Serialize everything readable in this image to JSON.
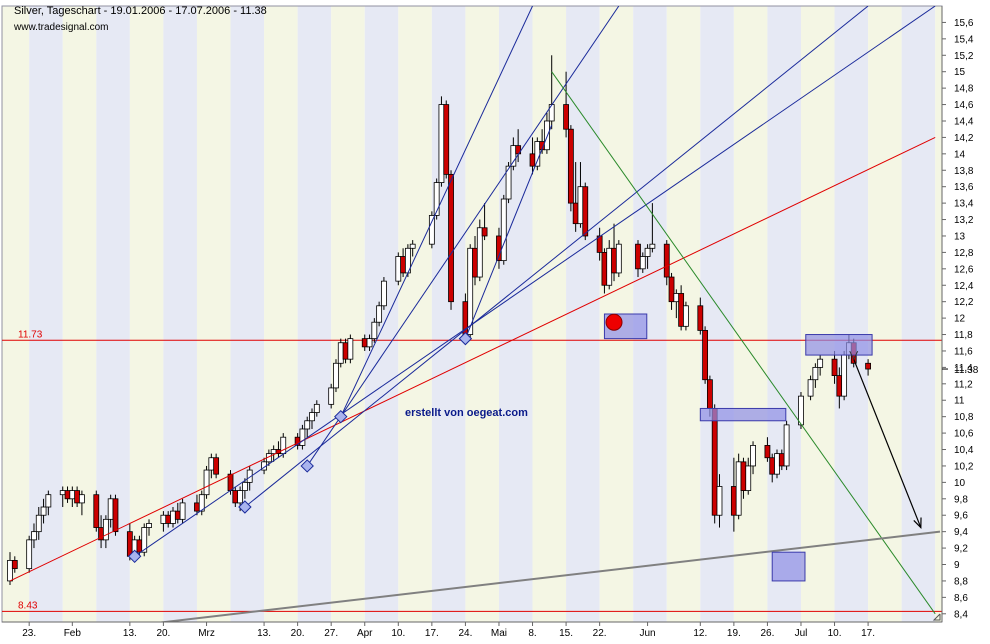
{
  "header": {
    "title": "Silver, Tageschart - 19.01.2006 - 17.07.2006 - 11.38",
    "source": "www.tradesignal.com",
    "watermark": "erstellt von oegeat.com"
  },
  "colors": {
    "background": "#ffffff",
    "band": "#f4f6e4",
    "band_alt": "#e6e9f4",
    "up_candle": "#ffffff",
    "down_candle": "#cc0000",
    "red_line": "#e00000",
    "blue_line": "#1a2a9a",
    "green_line": "#2a8a2a",
    "gray_line": "#808080",
    "box_fill": "#8f8fe6",
    "box_stroke": "#3a3aaa"
  },
  "chart_data": {
    "type": "candlestick",
    "title": "Silver, Tageschart - 19.01.2006 - 17.07.2006 - 11.38",
    "ylim": [
      8.3,
      15.8
    ],
    "y_ticks": [
      "15,6",
      "15,4",
      "15,2",
      "15",
      "14,8",
      "14,6",
      "14,4",
      "14,2",
      "14",
      "13,8",
      "13,6",
      "13,4",
      "13,2",
      "13",
      "12,8",
      "12,6",
      "12,4",
      "12,2",
      "12",
      "11,8",
      "11,6",
      "11,4",
      "11,2",
      "11",
      "10,8",
      "10,6",
      "10,4",
      "10,2",
      "10",
      "9,8",
      "9,6",
      "9,4",
      "9,2",
      "9",
      "8,8",
      "8,6",
      "8,4"
    ],
    "x_ticks": [
      "23.",
      "Feb",
      "13.",
      "20.",
      "Mrz",
      "13.",
      "20.",
      "27.",
      "Apr",
      "10.",
      "17.",
      "24.",
      "Mai",
      "8.",
      "15.",
      "22.",
      "Jun",
      "12.",
      "19.",
      "26.",
      "Jul",
      "10.",
      "17."
    ],
    "last_price": 11.38,
    "last_price_label": "11.38",
    "horizontal_lines": [
      {
        "value": 11.73,
        "label": "11.73"
      },
      {
        "value": 8.43,
        "label": "8.43"
      }
    ],
    "candles": [
      {
        "date": "2006-01-19",
        "o": 8.8,
        "h": 9.15,
        "l": 8.75,
        "c": 9.05
      },
      {
        "date": "2006-01-20",
        "o": 9.05,
        "h": 9.1,
        "l": 8.9,
        "c": 8.95
      },
      {
        "date": "2006-01-23",
        "o": 8.95,
        "h": 9.35,
        "l": 8.9,
        "c": 9.3
      },
      {
        "date": "2006-01-24",
        "o": 9.3,
        "h": 9.5,
        "l": 9.2,
        "c": 9.4
      },
      {
        "date": "2006-01-25",
        "o": 9.4,
        "h": 9.7,
        "l": 9.3,
        "c": 9.6
      },
      {
        "date": "2006-01-26",
        "o": 9.6,
        "h": 9.8,
        "l": 9.5,
        "c": 9.7
      },
      {
        "date": "2006-01-27",
        "o": 9.7,
        "h": 9.9,
        "l": 9.6,
        "c": 9.85
      },
      {
        "date": "2006-01-30",
        "o": 9.85,
        "h": 9.95,
        "l": 9.7,
        "c": 9.9
      },
      {
        "date": "2006-01-31",
        "o": 9.9,
        "h": 9.95,
        "l": 9.75,
        "c": 9.8
      },
      {
        "date": "2006-02-01",
        "o": 9.8,
        "h": 9.95,
        "l": 9.7,
        "c": 9.9
      },
      {
        "date": "2006-02-02",
        "o": 9.9,
        "h": 9.95,
        "l": 9.7,
        "c": 9.75
      },
      {
        "date": "2006-02-03",
        "o": 9.75,
        "h": 9.9,
        "l": 9.6,
        "c": 9.85
      },
      {
        "date": "2006-02-06",
        "o": 9.85,
        "h": 9.9,
        "l": 9.4,
        "c": 9.45
      },
      {
        "date": "2006-02-07",
        "o": 9.45,
        "h": 9.6,
        "l": 9.2,
        "c": 9.3
      },
      {
        "date": "2006-02-08",
        "o": 9.3,
        "h": 9.6,
        "l": 9.2,
        "c": 9.55
      },
      {
        "date": "2006-02-09",
        "o": 9.55,
        "h": 9.85,
        "l": 9.45,
        "c": 9.8
      },
      {
        "date": "2006-02-10",
        "o": 9.8,
        "h": 9.85,
        "l": 9.35,
        "c": 9.4
      },
      {
        "date": "2006-02-13",
        "o": 9.4,
        "h": 9.5,
        "l": 9.05,
        "c": 9.1
      },
      {
        "date": "2006-02-14",
        "o": 9.1,
        "h": 9.35,
        "l": 9.05,
        "c": 9.3
      },
      {
        "date": "2006-02-15",
        "o": 9.3,
        "h": 9.35,
        "l": 9.1,
        "c": 9.15
      },
      {
        "date": "2006-02-16",
        "o": 9.15,
        "h": 9.5,
        "l": 9.1,
        "c": 9.45
      },
      {
        "date": "2006-02-17",
        "o": 9.45,
        "h": 9.55,
        "l": 9.35,
        "c": 9.5
      },
      {
        "date": "2006-02-20",
        "o": 9.5,
        "h": 9.65,
        "l": 9.4,
        "c": 9.6
      },
      {
        "date": "2006-02-21",
        "o": 9.6,
        "h": 9.65,
        "l": 9.45,
        "c": 9.5
      },
      {
        "date": "2006-02-22",
        "o": 9.5,
        "h": 9.7,
        "l": 9.45,
        "c": 9.65
      },
      {
        "date": "2006-02-23",
        "o": 9.65,
        "h": 9.75,
        "l": 9.5,
        "c": 9.55
      },
      {
        "date": "2006-02-24",
        "o": 9.55,
        "h": 9.8,
        "l": 9.5,
        "c": 9.75
      },
      {
        "date": "2006-02-27",
        "o": 9.75,
        "h": 9.85,
        "l": 9.6,
        "c": 9.65
      },
      {
        "date": "2006-02-28",
        "o": 9.65,
        "h": 9.9,
        "l": 9.6,
        "c": 9.85
      },
      {
        "date": "2006-03-01",
        "o": 9.85,
        "h": 10.2,
        "l": 9.8,
        "c": 10.15
      },
      {
        "date": "2006-03-02",
        "o": 10.15,
        "h": 10.35,
        "l": 10.05,
        "c": 10.3
      },
      {
        "date": "2006-03-03",
        "o": 10.3,
        "h": 10.35,
        "l": 10.05,
        "c": 10.1
      },
      {
        "date": "2006-03-06",
        "o": 10.1,
        "h": 10.15,
        "l": 9.85,
        "c": 9.9
      },
      {
        "date": "2006-03-07",
        "o": 9.9,
        "h": 9.95,
        "l": 9.7,
        "c": 9.75
      },
      {
        "date": "2006-03-08",
        "o": 9.75,
        "h": 9.95,
        "l": 9.65,
        "c": 9.9
      },
      {
        "date": "2006-03-09",
        "o": 9.9,
        "h": 10.05,
        "l": 9.8,
        "c": 10.0
      },
      {
        "date": "2006-03-10",
        "o": 10.0,
        "h": 10.2,
        "l": 9.9,
        "c": 10.15
      },
      {
        "date": "2006-03-13",
        "o": 10.15,
        "h": 10.3,
        "l": 10.1,
        "c": 10.25
      },
      {
        "date": "2006-03-14",
        "o": 10.25,
        "h": 10.4,
        "l": 10.2,
        "c": 10.35
      },
      {
        "date": "2006-03-15",
        "o": 10.35,
        "h": 10.45,
        "l": 10.25,
        "c": 10.4
      },
      {
        "date": "2006-03-16",
        "o": 10.4,
        "h": 10.5,
        "l": 10.3,
        "c": 10.35
      },
      {
        "date": "2006-03-17",
        "o": 10.35,
        "h": 10.6,
        "l": 10.3,
        "c": 10.55
      },
      {
        "date": "2006-03-20",
        "o": 10.55,
        "h": 10.6,
        "l": 10.4,
        "c": 10.45
      },
      {
        "date": "2006-03-21",
        "o": 10.45,
        "h": 10.7,
        "l": 10.4,
        "c": 10.65
      },
      {
        "date": "2006-03-22",
        "o": 10.65,
        "h": 10.8,
        "l": 10.55,
        "c": 10.75
      },
      {
        "date": "2006-03-23",
        "o": 10.75,
        "h": 10.9,
        "l": 10.65,
        "c": 10.85
      },
      {
        "date": "2006-03-24",
        "o": 10.85,
        "h": 11.0,
        "l": 10.8,
        "c": 10.95
      },
      {
        "date": "2006-03-27",
        "o": 10.95,
        "h": 11.2,
        "l": 10.9,
        "c": 11.15
      },
      {
        "date": "2006-03-28",
        "o": 11.15,
        "h": 11.5,
        "l": 11.1,
        "c": 11.45
      },
      {
        "date": "2006-03-29",
        "o": 11.45,
        "h": 11.75,
        "l": 11.4,
        "c": 11.7
      },
      {
        "date": "2006-03-30",
        "o": 11.7,
        "h": 11.75,
        "l": 11.45,
        "c": 11.5
      },
      {
        "date": "2006-03-31",
        "o": 11.5,
        "h": 11.8,
        "l": 11.45,
        "c": 11.75
      },
      {
        "date": "2006-04-03",
        "o": 11.75,
        "h": 11.8,
        "l": 11.6,
        "c": 11.65
      },
      {
        "date": "2006-04-04",
        "o": 11.65,
        "h": 11.8,
        "l": 11.6,
        "c": 11.75
      },
      {
        "date": "2006-04-05",
        "o": 11.75,
        "h": 12.0,
        "l": 11.7,
        "c": 11.95
      },
      {
        "date": "2006-04-06",
        "o": 11.95,
        "h": 12.2,
        "l": 11.9,
        "c": 12.15
      },
      {
        "date": "2006-04-07",
        "o": 12.15,
        "h": 12.5,
        "l": 12.1,
        "c": 12.45
      },
      {
        "date": "2006-04-10",
        "o": 12.45,
        "h": 12.8,
        "l": 12.4,
        "c": 12.75
      },
      {
        "date": "2006-04-11",
        "o": 12.75,
        "h": 12.85,
        "l": 12.5,
        "c": 12.55
      },
      {
        "date": "2006-04-12",
        "o": 12.55,
        "h": 12.9,
        "l": 12.5,
        "c": 12.85
      },
      {
        "date": "2006-04-13",
        "o": 12.85,
        "h": 12.95,
        "l": 12.75,
        "c": 12.9
      },
      {
        "date": "2006-04-17",
        "o": 12.9,
        "h": 13.3,
        "l": 12.85,
        "c": 13.25
      },
      {
        "date": "2006-04-18",
        "o": 13.25,
        "h": 13.7,
        "l": 13.2,
        "c": 13.65
      },
      {
        "date": "2006-04-19",
        "o": 13.65,
        "h": 14.7,
        "l": 13.6,
        "c": 14.6
      },
      {
        "date": "2006-04-20",
        "o": 14.6,
        "h": 14.65,
        "l": 13.7,
        "c": 13.75
      },
      {
        "date": "2006-04-21",
        "o": 13.75,
        "h": 13.8,
        "l": 12.1,
        "c": 12.2
      },
      {
        "date": "2006-04-24",
        "o": 12.2,
        "h": 12.3,
        "l": 11.75,
        "c": 11.8
      },
      {
        "date": "2006-04-25",
        "o": 11.8,
        "h": 12.9,
        "l": 11.75,
        "c": 12.85
      },
      {
        "date": "2006-04-26",
        "o": 12.85,
        "h": 13.0,
        "l": 12.4,
        "c": 12.5
      },
      {
        "date": "2006-04-27",
        "o": 12.5,
        "h": 13.2,
        "l": 12.45,
        "c": 13.1
      },
      {
        "date": "2006-04-28",
        "o": 13.1,
        "h": 13.4,
        "l": 12.95,
        "c": 13.0
      },
      {
        "date": "2006-05-01",
        "o": 13.0,
        "h": 13.1,
        "l": 12.6,
        "c": 12.7
      },
      {
        "date": "2006-05-02",
        "o": 12.7,
        "h": 13.5,
        "l": 12.65,
        "c": 13.45
      },
      {
        "date": "2006-05-03",
        "o": 13.45,
        "h": 13.9,
        "l": 13.4,
        "c": 13.85
      },
      {
        "date": "2006-05-04",
        "o": 13.85,
        "h": 14.2,
        "l": 13.8,
        "c": 14.1
      },
      {
        "date": "2006-05-05",
        "o": 14.1,
        "h": 14.3,
        "l": 13.9,
        "c": 14.0
      },
      {
        "date": "2006-05-08",
        "o": 14.0,
        "h": 14.2,
        "l": 13.75,
        "c": 13.85
      },
      {
        "date": "2006-05-09",
        "o": 13.85,
        "h": 14.2,
        "l": 13.8,
        "c": 14.15
      },
      {
        "date": "2006-05-10",
        "o": 14.15,
        "h": 14.3,
        "l": 14.0,
        "c": 14.05
      },
      {
        "date": "2006-05-11",
        "o": 14.05,
        "h": 14.5,
        "l": 14.0,
        "c": 14.4
      },
      {
        "date": "2006-05-12",
        "o": 14.4,
        "h": 15.2,
        "l": 14.3,
        "c": 14.6
      },
      {
        "date": "2006-05-15",
        "o": 14.6,
        "h": 15.0,
        "l": 14.2,
        "c": 14.3
      },
      {
        "date": "2006-05-16",
        "o": 14.3,
        "h": 14.35,
        "l": 13.3,
        "c": 13.4
      },
      {
        "date": "2006-05-17",
        "o": 13.4,
        "h": 13.9,
        "l": 13.05,
        "c": 13.15
      },
      {
        "date": "2006-05-18",
        "o": 13.15,
        "h": 13.9,
        "l": 13.1,
        "c": 13.6
      },
      {
        "date": "2006-05-19",
        "o": 13.6,
        "h": 13.65,
        "l": 12.95,
        "c": 13.0
      },
      {
        "date": "2006-05-22",
        "o": 13.0,
        "h": 13.1,
        "l": 12.7,
        "c": 12.8
      },
      {
        "date": "2006-05-23",
        "o": 12.8,
        "h": 12.85,
        "l": 12.3,
        "c": 12.4
      },
      {
        "date": "2006-05-24",
        "o": 12.4,
        "h": 12.95,
        "l": 12.35,
        "c": 12.85
      },
      {
        "date": "2006-05-25",
        "o": 12.85,
        "h": 13.15,
        "l": 12.45,
        "c": 12.55
      },
      {
        "date": "2006-05-26",
        "o": 12.55,
        "h": 12.95,
        "l": 12.5,
        "c": 12.9
      },
      {
        "date": "2006-05-30",
        "o": 12.9,
        "h": 12.95,
        "l": 12.5,
        "c": 12.6
      },
      {
        "date": "2006-05-31",
        "o": 12.6,
        "h": 12.8,
        "l": 12.55,
        "c": 12.75
      },
      {
        "date": "2006-06-01",
        "o": 12.75,
        "h": 12.9,
        "l": 12.6,
        "c": 12.85
      },
      {
        "date": "2006-06-02",
        "o": 12.85,
        "h": 13.4,
        "l": 12.8,
        "c": 12.9
      },
      {
        "date": "2006-06-05",
        "o": 12.9,
        "h": 12.95,
        "l": 12.4,
        "c": 12.5
      },
      {
        "date": "2006-06-06",
        "o": 12.5,
        "h": 12.55,
        "l": 12.1,
        "c": 12.2
      },
      {
        "date": "2006-06-07",
        "o": 12.2,
        "h": 12.35,
        "l": 12.0,
        "c": 12.3
      },
      {
        "date": "2006-06-08",
        "o": 12.3,
        "h": 12.4,
        "l": 11.85,
        "c": 11.9
      },
      {
        "date": "2006-06-09",
        "o": 11.9,
        "h": 12.2,
        "l": 11.85,
        "c": 12.15
      },
      {
        "date": "2006-06-12",
        "o": 12.15,
        "h": 12.25,
        "l": 11.8,
        "c": 11.85
      },
      {
        "date": "2006-06-13",
        "o": 11.85,
        "h": 11.9,
        "l": 11.2,
        "c": 11.25
      },
      {
        "date": "2006-06-14",
        "o": 11.25,
        "h": 11.3,
        "l": 10.8,
        "c": 10.9
      },
      {
        "date": "2006-06-15",
        "o": 10.9,
        "h": 10.95,
        "l": 9.5,
        "c": 9.6
      },
      {
        "date": "2006-06-16",
        "o": 9.6,
        "h": 10.1,
        "l": 9.45,
        "c": 9.95
      },
      {
        "date": "2006-06-19",
        "o": 9.95,
        "h": 10.3,
        "l": 9.4,
        "c": 9.6
      },
      {
        "date": "2006-06-20",
        "o": 9.6,
        "h": 10.35,
        "l": 9.55,
        "c": 10.25
      },
      {
        "date": "2006-06-21",
        "o": 10.25,
        "h": 10.3,
        "l": 9.8,
        "c": 9.9
      },
      {
        "date": "2006-06-22",
        "o": 9.9,
        "h": 10.3,
        "l": 9.85,
        "c": 10.2
      },
      {
        "date": "2006-06-23",
        "o": 10.2,
        "h": 10.5,
        "l": 10.1,
        "c": 10.45
      },
      {
        "date": "2006-06-26",
        "o": 10.45,
        "h": 10.55,
        "l": 10.25,
        "c": 10.3
      },
      {
        "date": "2006-06-27",
        "o": 10.3,
        "h": 10.35,
        "l": 10.0,
        "c": 10.1
      },
      {
        "date": "2006-06-28",
        "o": 10.1,
        "h": 10.4,
        "l": 10.05,
        "c": 10.35
      },
      {
        "date": "2006-06-29",
        "o": 10.35,
        "h": 10.4,
        "l": 10.15,
        "c": 10.2
      },
      {
        "date": "2006-06-30",
        "o": 10.2,
        "h": 10.75,
        "l": 10.15,
        "c": 10.7
      },
      {
        "date": "2006-07-03",
        "o": 10.7,
        "h": 11.1,
        "l": 10.65,
        "c": 11.05
      },
      {
        "date": "2006-07-05",
        "o": 11.05,
        "h": 11.3,
        "l": 11.0,
        "c": 11.25
      },
      {
        "date": "2006-07-06",
        "o": 11.25,
        "h": 11.45,
        "l": 11.15,
        "c": 11.4
      },
      {
        "date": "2006-07-07",
        "o": 11.4,
        "h": 11.55,
        "l": 11.3,
        "c": 11.5
      },
      {
        "date": "2006-07-10",
        "o": 11.5,
        "h": 11.6,
        "l": 11.2,
        "c": 11.3
      },
      {
        "date": "2006-07-11",
        "o": 11.3,
        "h": 11.4,
        "l": 10.9,
        "c": 11.05
      },
      {
        "date": "2006-07-12",
        "o": 11.05,
        "h": 11.6,
        "l": 11.0,
        "c": 11.55
      },
      {
        "date": "2006-07-13",
        "o": 11.55,
        "h": 11.8,
        "l": 11.5,
        "c": 11.7
      },
      {
        "date": "2006-07-14",
        "o": 11.7,
        "h": 11.75,
        "l": 11.4,
        "c": 11.45
      },
      {
        "date": "2006-07-17",
        "o": 11.45,
        "h": 11.5,
        "l": 11.3,
        "c": 11.38
      }
    ],
    "annotations": {
      "trend_lines": [
        {
          "color": "red",
          "from": [
            "2006-01-19",
            8.8
          ],
          "to": [
            "2006-07-31",
            14.2
          ]
        },
        {
          "color": "blue",
          "from": [
            "2006-02-14",
            9.1
          ],
          "to": [
            "2006-07-31",
            15.8
          ]
        },
        {
          "color": "blue",
          "from": [
            "2006-03-09",
            9.7
          ],
          "to": [
            "2006-07-17",
            15.8
          ]
        },
        {
          "color": "blue",
          "from": [
            "2006-03-22",
            10.2
          ],
          "to": [
            "2006-05-26",
            15.8
          ]
        },
        {
          "color": "blue",
          "from": [
            "2006-03-29",
            10.8
          ],
          "to": [
            "2006-05-08",
            15.8
          ]
        },
        {
          "color": "blue",
          "from": [
            "2006-04-24",
            11.75
          ],
          "to": [
            "2006-05-12",
            14.35
          ]
        },
        {
          "color": "green",
          "from": [
            "2006-05-12",
            15.0
          ],
          "to": [
            "2006-07-31",
            8.4
          ]
        },
        {
          "color": "gray",
          "from": [
            "2006-02-13",
            8.25
          ],
          "to": [
            "2006-08-01",
            9.4
          ]
        }
      ],
      "marker_points": [
        {
          "date": "2006-02-14",
          "value": 9.1
        },
        {
          "date": "2006-03-09",
          "value": 9.7
        },
        {
          "date": "2006-03-22",
          "value": 10.2
        },
        {
          "date": "2006-03-29",
          "value": 10.8
        },
        {
          "date": "2006-04-24",
          "value": 11.75
        }
      ],
      "boxes": [
        {
          "from": "2006-05-23",
          "to": "2006-05-31",
          "low": 11.75,
          "high": 12.05
        },
        {
          "from": "2006-06-12",
          "to": "2006-06-29",
          "low": 10.75,
          "high": 10.9
        },
        {
          "from": "2006-07-04",
          "to": "2006-07-17",
          "low": 11.55,
          "high": 11.8
        },
        {
          "from": "2006-06-27",
          "to": "2006-07-03",
          "low": 8.8,
          "high": 9.15
        }
      ],
      "red_marker": {
        "date": "2006-05-25",
        "value": 11.95
      },
      "arrow": {
        "from": [
          "2006-07-14",
          11.5
        ],
        "to": [
          "2006-07-28",
          9.45
        ]
      }
    }
  }
}
